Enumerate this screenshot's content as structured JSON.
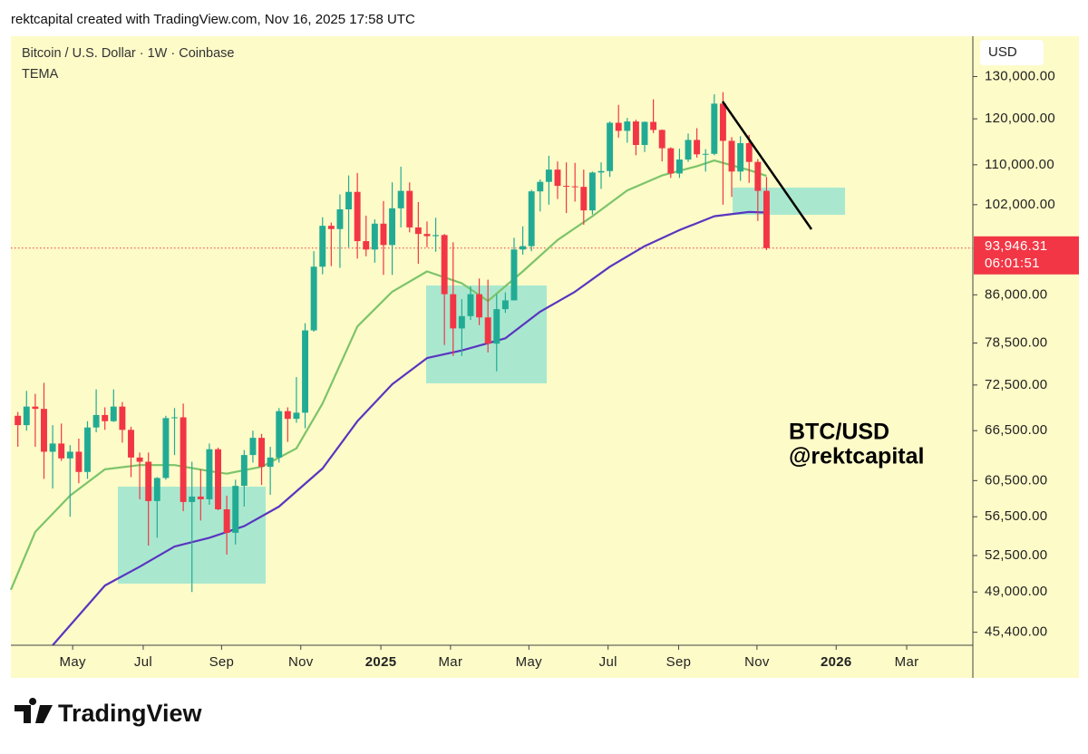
{
  "chart_data": {
    "type": "candlestick",
    "header": "rektcapital created with TradingView.com, Nov 16, 2025 17:58 UTC",
    "title": "Bitcoin / U.S. Dollar · 1W · Coinbase",
    "indicator": "TEMA",
    "currency": "USD",
    "annotation": [
      "BTC/USD",
      "@rektcapital"
    ],
    "brand": "TradingView",
    "up_color": "#22ab94",
    "down_color": "#f23645",
    "log_scale": true,
    "ylim": [
      44300,
      140300
    ],
    "yticks": [
      {
        "value": 45400,
        "label": "45,400.00"
      },
      {
        "value": 49000,
        "label": "49,000.00"
      },
      {
        "value": 52500,
        "label": "52,500.00"
      },
      {
        "value": 56500,
        "label": "56,500.00"
      },
      {
        "value": 60500,
        "label": "60,500.00"
      },
      {
        "value": 66500,
        "label": "66,500.00"
      },
      {
        "value": 72500,
        "label": "72,500.00"
      },
      {
        "value": 78500,
        "label": "78,500.00"
      },
      {
        "value": 86000,
        "label": "86,000.00"
      },
      {
        "value": 102000,
        "label": "102,000.00"
      },
      {
        "value": 110000,
        "label": "110,000.00"
      },
      {
        "value": 120000,
        "label": "120,000.00"
      },
      {
        "value": 130000,
        "label": "130,000.00"
      }
    ],
    "xlim": [
      -0.8,
      109.7
    ],
    "xticks": [
      {
        "value": 6.3,
        "label": "May"
      },
      {
        "value": 14.4,
        "label": "Jul"
      },
      {
        "value": 23.4,
        "label": "Sep"
      },
      {
        "value": 32.5,
        "label": "Nov"
      },
      {
        "value": 41.7,
        "label": "2025"
      },
      {
        "value": 49.7,
        "label": "Mar"
      },
      {
        "value": 58.7,
        "label": "May"
      },
      {
        "value": 67.8,
        "label": "Jul"
      },
      {
        "value": 75.9,
        "label": "Sep"
      },
      {
        "value": 84.9,
        "label": "Nov"
      },
      {
        "value": 94.0,
        "label": "2026"
      },
      {
        "value": 102.1,
        "label": "Mar"
      }
    ],
    "last_price": {
      "value": 93946.31,
      "label": "93,946.31"
    },
    "countdown": "06:01:51",
    "candles": {
      "open": [
        68400,
        67200,
        69600,
        69300,
        63900,
        64900,
        63100,
        63900,
        61500,
        66900,
        68500,
        67700,
        69600,
        66600,
        63200,
        62700,
        58200,
        60800,
        68100,
        68200,
        58100,
        58700,
        58400,
        64200,
        57300,
        54800,
        59900,
        63500,
        65600,
        62100,
        63200,
        69000,
        68000,
        68800,
        80400,
        90700,
        98000,
        97400,
        101100,
        104500,
        95200,
        93700,
        98400,
        94500,
        101300,
        104700,
        97700,
        96500,
        96100,
        96300,
        86100,
        80700,
        82600,
        86100,
        82400,
        78400,
        83700,
        85100,
        93700,
        94300,
        104600,
        106500,
        109000,
        105700,
        105600,
        105500,
        100900,
        108400,
        108700,
        119100,
        117300,
        119400,
        114200,
        119300,
        117500,
        113500,
        108200,
        111100,
        115300,
        112200,
        112300,
        123500,
        115100,
        108600,
        114600,
        110600,
        104700
      ],
      "high": [
        68900,
        71700,
        71300,
        72800,
        67200,
        67400,
        64700,
        65500,
        67700,
        71900,
        69500,
        71900,
        70200,
        67000,
        63800,
        63800,
        60900,
        68400,
        69400,
        70000,
        62700,
        61800,
        64900,
        64400,
        58800,
        60600,
        64100,
        66500,
        66100,
        64500,
        69400,
        69500,
        73600,
        81500,
        93400,
        99600,
        98600,
        104000,
        107800,
        108300,
        99900,
        99200,
        102700,
        106400,
        109600,
        106400,
        102500,
        98800,
        99500,
        96500,
        95000,
        85300,
        87400,
        88700,
        88500,
        86100,
        86400,
        95800,
        97900,
        104900,
        107000,
        111900,
        110700,
        110500,
        110400,
        109000,
        108600,
        110500,
        119400,
        123200,
        120200,
        119800,
        119400,
        124500,
        117600,
        113700,
        113400,
        116700,
        117900,
        113300,
        125700,
        126200,
        115900,
        116100,
        116400,
        111200,
        107500
      ],
      "low": [
        64500,
        66500,
        64500,
        60700,
        59600,
        62800,
        56500,
        60200,
        60700,
        66300,
        66600,
        67600,
        65000,
        60900,
        58400,
        53500,
        54300,
        60600,
        63500,
        57100,
        49000,
        56100,
        57800,
        57200,
        52600,
        53600,
        57600,
        62600,
        60000,
        58900,
        62600,
        65100,
        67500,
        66800,
        80200,
        89400,
        90800,
        90500,
        94100,
        92100,
        92500,
        91400,
        89300,
        89300,
        97700,
        96800,
        91200,
        94100,
        93300,
        78200,
        76600,
        76600,
        82000,
        81200,
        77100,
        74400,
        83100,
        85100,
        92800,
        93400,
        100700,
        102000,
        103100,
        100400,
        102600,
        98200,
        100100,
        105100,
        107500,
        115800,
        114700,
        112000,
        112700,
        116800,
        110700,
        107300,
        107300,
        110600,
        111500,
        108600,
        112000,
        102000,
        103500,
        106700,
        106300,
        98900,
        93600
      ],
      "close": [
        67200,
        69600,
        69300,
        63900,
        64900,
        63100,
        63900,
        61500,
        66900,
        68500,
        67700,
        69600,
        66600,
        63200,
        62700,
        58200,
        60800,
        68100,
        68200,
        58100,
        58700,
        58400,
        64200,
        57300,
        54800,
        59900,
        63500,
        65600,
        62100,
        63200,
        69000,
        68000,
        68800,
        80400,
        90700,
        98000,
        97400,
        101100,
        104500,
        95200,
        93700,
        98400,
        94500,
        101300,
        104700,
        97700,
        96500,
        96100,
        96300,
        86100,
        80700,
        82600,
        86100,
        82400,
        78400,
        83700,
        85100,
        93700,
        94300,
        104600,
        106500,
        109000,
        105700,
        105600,
        105500,
        100900,
        108400,
        108700,
        119100,
        117300,
        119400,
        114200,
        119300,
        117500,
        113500,
        108200,
        111100,
        115300,
        112200,
        112300,
        123500,
        115100,
        108600,
        114600,
        110600,
        104700,
        93946.31
      ]
    },
    "series": [
      {
        "color": "#7cc46a",
        "x": [
          -0.8,
          2,
          6,
          10,
          14,
          18,
          22,
          24,
          28,
          32,
          35,
          39,
          43,
          47,
          51,
          54,
          58,
          62,
          66,
          70,
          74,
          78,
          80,
          84,
          86
        ],
        "values": [
          49200,
          54900,
          58800,
          61800,
          62300,
          62300,
          61600,
          61300,
          62100,
          64300,
          70000,
          81000,
          86500,
          89900,
          87900,
          85000,
          89900,
          95400,
          99800,
          104800,
          107800,
          109700,
          110900,
          108900,
          107700
        ]
      },
      {
        "color": "#5a35c0",
        "x": [
          4,
          10,
          14,
          18,
          22,
          26,
          30,
          35,
          39,
          43,
          47,
          51,
          56,
          60,
          64,
          68,
          72,
          76,
          80,
          84,
          86
        ],
        "values": [
          44300,
          49600,
          51400,
          53400,
          54300,
          55500,
          57600,
          61900,
          67700,
          72600,
          76300,
          77400,
          79200,
          83300,
          86500,
          90700,
          94300,
          97200,
          99800,
          100600,
          100500
        ]
      }
    ]
  }
}
